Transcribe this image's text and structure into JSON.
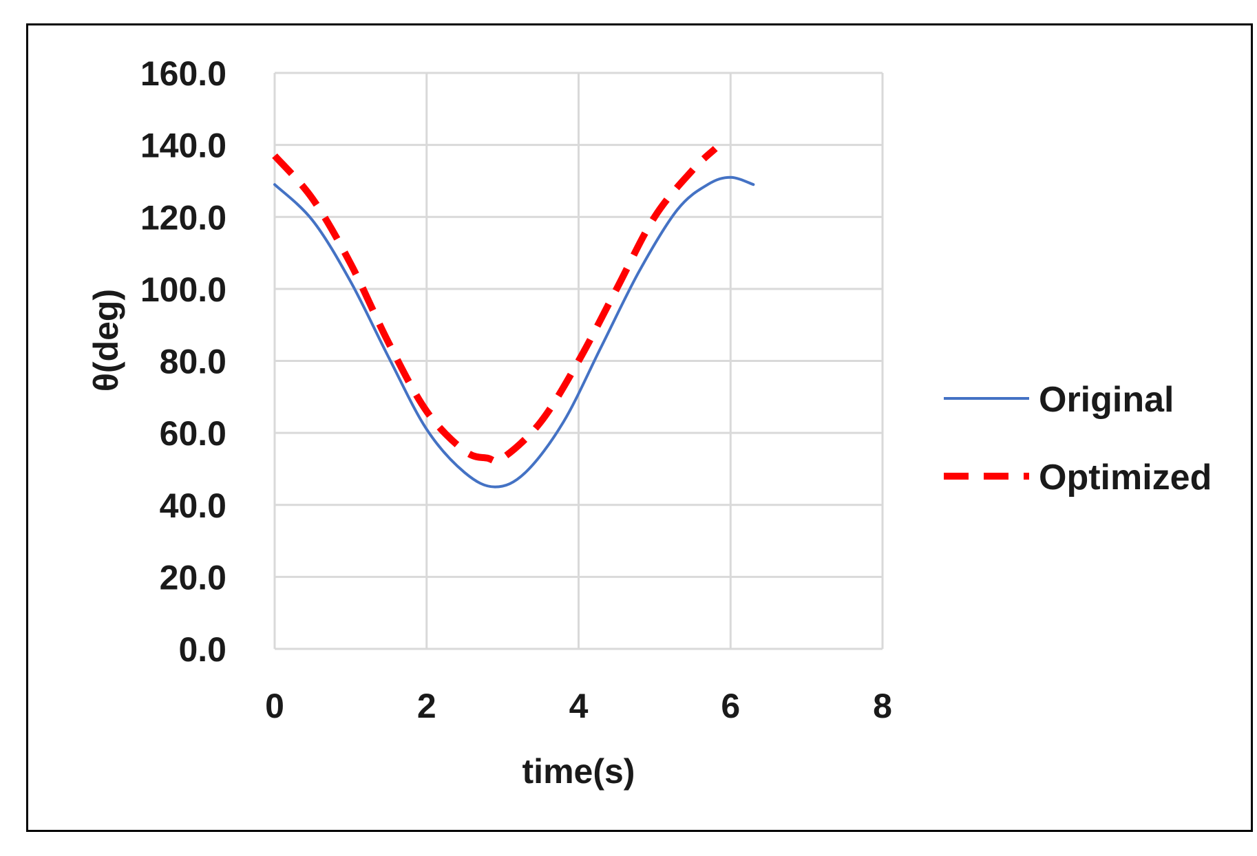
{
  "chart_data": {
    "type": "line",
    "xlabel": "time(s)",
    "ylabel": "θ(deg)",
    "xlim": [
      0,
      8
    ],
    "ylim": [
      0,
      160
    ],
    "x_ticks": [
      "0",
      "2",
      "4",
      "6",
      "8"
    ],
    "y_ticks": [
      "0.0",
      "20.0",
      "40.0",
      "60.0",
      "80.0",
      "100.0",
      "120.0",
      "140.0",
      "160.0"
    ],
    "grid": true,
    "legend_position": "right",
    "series": [
      {
        "name": "Original",
        "color": "#4472C4",
        "style": "solid",
        "x": [
          0,
          0.5,
          1.0,
          1.5,
          2.0,
          2.5,
          2.9,
          3.3,
          3.8,
          4.3,
          4.8,
          5.3,
          5.7,
          6.0,
          6.3
        ],
        "y": [
          129.0,
          119.0,
          102.0,
          81.0,
          61.0,
          49.0,
          45.0,
          49.0,
          63.0,
          84.0,
          105.0,
          122.0,
          129.0,
          131.0,
          129.0
        ]
      },
      {
        "name": "Optimized",
        "color": "#FF0000",
        "style": "dashed",
        "x": [
          0,
          0.5,
          1.0,
          1.5,
          2.0,
          2.5,
          2.8,
          3.0,
          3.5,
          4.0,
          4.5,
          5.0,
          5.5,
          5.8
        ],
        "y": [
          137.0,
          125.0,
          107.0,
          85.0,
          66.0,
          55.0,
          53.0,
          53.0,
          63.0,
          80.0,
          100.0,
          120.0,
          133.0,
          139.0
        ]
      }
    ]
  }
}
